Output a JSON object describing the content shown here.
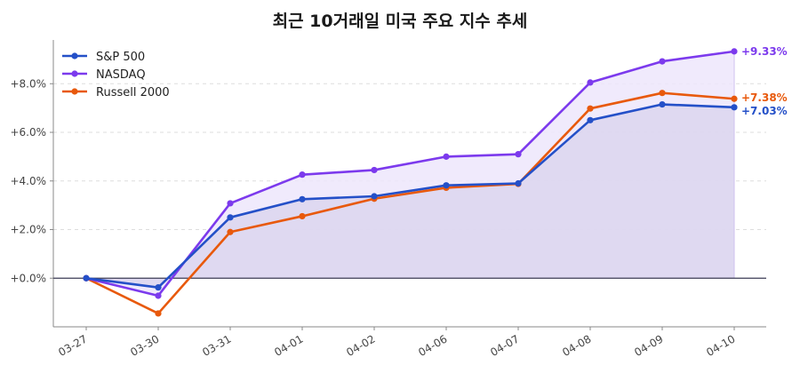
{
  "chart_data": {
    "type": "line",
    "title": "최근 10거래일 미국 주요 지수 추세",
    "xlabel": "",
    "ylabel": "",
    "categories": [
      "03-27",
      "03-30",
      "03-31",
      "04-01",
      "04-02",
      "04-06",
      "04-07",
      "04-08",
      "04-09",
      "04-10"
    ],
    "series": [
      {
        "name": "S&P 500",
        "color": "#2450c8",
        "values": [
          0.0,
          -0.38,
          2.5,
          3.25,
          3.37,
          3.82,
          3.9,
          6.5,
          7.15,
          7.03
        ],
        "end_label": "+7.03%"
      },
      {
        "name": "NASDAQ",
        "color": "#7c3aed",
        "values": [
          0.0,
          -0.72,
          3.08,
          4.26,
          4.45,
          5.0,
          5.1,
          8.05,
          8.92,
          9.33
        ],
        "end_label": "+9.33%"
      },
      {
        "name": "Russell 2000",
        "color": "#e8590c",
        "values": [
          0.0,
          -1.45,
          1.9,
          2.55,
          3.27,
          3.72,
          3.88,
          6.98,
          7.62,
          7.38
        ],
        "end_label": "+7.38%"
      }
    ],
    "ylim": [
      -2.0,
      9.8
    ],
    "yticks": [
      0,
      2,
      4,
      6,
      8
    ],
    "ytick_labels": [
      "+0.0%",
      "+2.0%",
      "+4.0%",
      "+6.0%",
      "+8.0%"
    ],
    "grid": true,
    "legend_position": "top-left",
    "fill_colors": {
      "NASDAQ": "#ede6fb",
      "S&P 500": "#dcd6ee"
    }
  }
}
